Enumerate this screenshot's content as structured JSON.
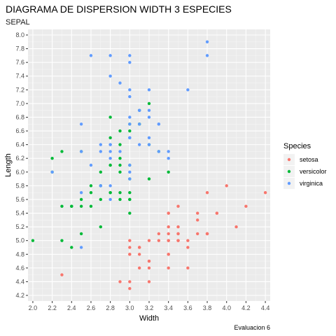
{
  "chart_data": {
    "type": "scatter",
    "title": "DIAGRAMA DE DISPERSION WIDTH 3 ESPECIES",
    "subtitle": "SEPAL",
    "xlabel": "Width",
    "ylabel": "Length",
    "caption": "Evaluacion 6",
    "xlim": [
      1.95,
      4.45
    ],
    "ylim": [
      4.2,
      8.0
    ],
    "x_ticks": [
      "2.0",
      "2.2",
      "2.4",
      "2.6",
      "2.8",
      "3.0",
      "3.2",
      "3.4",
      "3.6",
      "3.8",
      "4.0",
      "4.2",
      "4.4"
    ],
    "y_ticks": [
      "4.2",
      "4.4",
      "4.6",
      "4.8",
      "5.0",
      "5.2",
      "5.4",
      "5.6",
      "5.8",
      "6.0",
      "6.2",
      "6.4",
      "6.6",
      "6.8",
      "7.0",
      "7.2",
      "7.4",
      "7.6",
      "7.8",
      "8.0"
    ],
    "grid": true,
    "legend_title": "Species",
    "legend_position": "right",
    "series": [
      {
        "name": "setosa",
        "color": "#F8766D",
        "points": [
          [
            3.5,
            5.1
          ],
          [
            3.0,
            4.9
          ],
          [
            3.2,
            4.7
          ],
          [
            3.1,
            4.6
          ],
          [
            3.6,
            5.0
          ],
          [
            3.9,
            5.4
          ],
          [
            3.4,
            4.6
          ],
          [
            3.4,
            5.0
          ],
          [
            2.9,
            4.4
          ],
          [
            3.1,
            4.9
          ],
          [
            3.7,
            5.4
          ],
          [
            3.4,
            4.8
          ],
          [
            3.0,
            4.8
          ],
          [
            3.0,
            4.3
          ],
          [
            4.0,
            5.8
          ],
          [
            4.4,
            5.7
          ],
          [
            3.9,
            5.4
          ],
          [
            3.5,
            5.1
          ],
          [
            3.8,
            5.7
          ],
          [
            3.8,
            5.1
          ],
          [
            3.4,
            5.4
          ],
          [
            3.7,
            5.1
          ],
          [
            3.6,
            4.6
          ],
          [
            3.3,
            5.1
          ],
          [
            3.4,
            4.8
          ],
          [
            3.0,
            5.0
          ],
          [
            3.4,
            5.0
          ],
          [
            3.5,
            5.2
          ],
          [
            3.4,
            5.2
          ],
          [
            3.2,
            4.7
          ],
          [
            3.1,
            4.8
          ],
          [
            3.4,
            5.4
          ],
          [
            4.1,
            5.2
          ],
          [
            4.2,
            5.5
          ],
          [
            3.1,
            4.9
          ],
          [
            3.2,
            5.0
          ],
          [
            3.5,
            5.5
          ],
          [
            3.6,
            4.9
          ],
          [
            3.0,
            4.4
          ],
          [
            3.4,
            5.1
          ],
          [
            3.5,
            5.0
          ],
          [
            2.3,
            4.5
          ],
          [
            3.2,
            4.4
          ],
          [
            3.5,
            5.0
          ],
          [
            3.8,
            5.1
          ],
          [
            3.0,
            4.8
          ],
          [
            3.8,
            5.1
          ],
          [
            3.2,
            4.6
          ],
          [
            3.7,
            5.3
          ],
          [
            3.3,
            5.0
          ]
        ]
      },
      {
        "name": "versicolor",
        "color": "#00BA38",
        "points": [
          [
            3.2,
            7.0
          ],
          [
            3.2,
            6.4
          ],
          [
            3.1,
            6.9
          ],
          [
            2.3,
            5.5
          ],
          [
            2.8,
            6.5
          ],
          [
            2.8,
            5.7
          ],
          [
            3.3,
            6.3
          ],
          [
            2.4,
            4.9
          ],
          [
            2.9,
            6.6
          ],
          [
            2.7,
            5.2
          ],
          [
            2.0,
            5.0
          ],
          [
            3.0,
            5.9
          ],
          [
            2.2,
            6.0
          ],
          [
            2.9,
            6.1
          ],
          [
            2.9,
            5.6
          ],
          [
            3.1,
            6.7
          ],
          [
            3.0,
            5.6
          ],
          [
            2.7,
            5.8
          ],
          [
            2.2,
            6.2
          ],
          [
            2.5,
            5.6
          ],
          [
            3.2,
            5.9
          ],
          [
            2.8,
            6.1
          ],
          [
            2.5,
            6.3
          ],
          [
            2.8,
            6.1
          ],
          [
            2.9,
            6.4
          ],
          [
            3.0,
            6.6
          ],
          [
            2.8,
            6.8
          ],
          [
            3.0,
            6.7
          ],
          [
            2.9,
            6.0
          ],
          [
            2.6,
            5.7
          ],
          [
            2.4,
            5.5
          ],
          [
            2.4,
            5.5
          ],
          [
            2.7,
            5.8
          ],
          [
            2.7,
            6.0
          ],
          [
            3.0,
            5.4
          ],
          [
            3.4,
            6.0
          ],
          [
            3.1,
            6.7
          ],
          [
            2.3,
            6.3
          ],
          [
            3.0,
            5.6
          ],
          [
            2.5,
            5.5
          ],
          [
            2.6,
            5.5
          ],
          [
            3.0,
            6.1
          ],
          [
            2.6,
            5.8
          ],
          [
            2.3,
            5.0
          ],
          [
            2.7,
            5.6
          ],
          [
            3.0,
            5.7
          ],
          [
            2.9,
            5.7
          ],
          [
            2.9,
            6.2
          ],
          [
            2.5,
            5.1
          ],
          [
            2.8,
            5.7
          ]
        ]
      },
      {
        "name": "virginica",
        "color": "#619CFF",
        "points": [
          [
            3.3,
            6.3
          ],
          [
            2.7,
            5.8
          ],
          [
            3.0,
            7.1
          ],
          [
            2.9,
            6.3
          ],
          [
            3.0,
            6.5
          ],
          [
            3.0,
            7.6
          ],
          [
            2.5,
            4.9
          ],
          [
            2.9,
            7.3
          ],
          [
            2.5,
            6.7
          ],
          [
            3.6,
            7.2
          ],
          [
            3.2,
            6.5
          ],
          [
            2.7,
            6.4
          ],
          [
            3.0,
            6.8
          ],
          [
            2.5,
            5.7
          ],
          [
            2.8,
            5.8
          ],
          [
            3.2,
            6.4
          ],
          [
            3.0,
            6.5
          ],
          [
            3.8,
            7.7
          ],
          [
            2.6,
            7.7
          ],
          [
            2.2,
            6.0
          ],
          [
            3.2,
            6.9
          ],
          [
            2.8,
            5.6
          ],
          [
            2.8,
            7.7
          ],
          [
            2.7,
            6.3
          ],
          [
            3.3,
            6.7
          ],
          [
            3.2,
            7.2
          ],
          [
            2.8,
            6.2
          ],
          [
            3.0,
            6.1
          ],
          [
            2.8,
            6.4
          ],
          [
            3.0,
            7.2
          ],
          [
            2.8,
            7.4
          ],
          [
            3.8,
            7.9
          ],
          [
            2.8,
            6.4
          ],
          [
            2.8,
            6.3
          ],
          [
            2.6,
            6.1
          ],
          [
            3.0,
            7.7
          ],
          [
            3.4,
            6.3
          ],
          [
            3.1,
            6.4
          ],
          [
            3.0,
            6.0
          ],
          [
            3.1,
            6.9
          ],
          [
            3.1,
            6.7
          ],
          [
            3.1,
            6.9
          ],
          [
            2.7,
            5.8
          ],
          [
            3.2,
            6.8
          ],
          [
            3.3,
            6.7
          ],
          [
            3.0,
            6.7
          ],
          [
            2.5,
            6.3
          ],
          [
            3.0,
            6.5
          ],
          [
            3.4,
            6.2
          ],
          [
            3.0,
            5.9
          ]
        ]
      }
    ]
  }
}
